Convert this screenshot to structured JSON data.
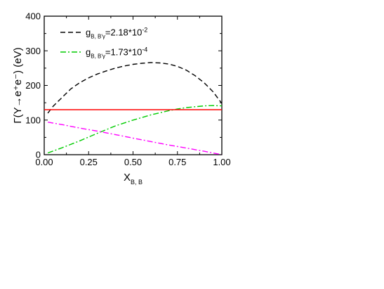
{
  "chart_data": {
    "type": "line",
    "xlabel": "X",
    "xlabel_sub": "B, B",
    "ylabel": "Γ(Υ→e⁺e⁻) (eV)",
    "xlim": [
      0.0,
      1.0
    ],
    "ylim": [
      0,
      400
    ],
    "xticks": [
      0.0,
      0.25,
      0.5,
      0.75,
      1.0
    ],
    "xtick_labels": [
      "0.00",
      "0.25",
      "0.50",
      "0.75",
      "1.00"
    ],
    "yticks": [
      0,
      100,
      200,
      300,
      400
    ],
    "ytick_labels": [
      "0",
      "100",
      "200",
      "300",
      "400"
    ],
    "grid": false,
    "legend_position": "top-left",
    "series": [
      {
        "name": "g_{B1B'1γ}=2.18*10^{-2}",
        "legend_main": "g",
        "legend_sub": "B, B'γ",
        "legend_value": "=2.18*10",
        "legend_exp": "-2",
        "color": "#000000",
        "style": "dash",
        "x": [
          0.02,
          0.05,
          0.1,
          0.15,
          0.2,
          0.25,
          0.3,
          0.35,
          0.4,
          0.45,
          0.5,
          0.55,
          0.6,
          0.65,
          0.7,
          0.75,
          0.8,
          0.85,
          0.9,
          0.95,
          1.0
        ],
        "y": [
          120,
          140,
          165,
          190,
          208,
          222,
          233,
          242,
          250,
          256,
          261,
          264,
          266,
          265,
          262,
          255,
          244,
          228,
          208,
          182,
          148
        ]
      },
      {
        "name": "g_{B1B'1γ}=1.73*10^{-4}",
        "legend_main": "g",
        "legend_sub": "B, B'γ",
        "legend_value": "=1.73*10",
        "legend_exp": "-4",
        "color": "#00cc00",
        "style": "dashdot",
        "x": [
          0.02,
          0.1,
          0.2,
          0.3,
          0.4,
          0.5,
          0.6,
          0.7,
          0.75,
          0.8,
          0.9,
          0.95,
          1.0
        ],
        "y": [
          5,
          20,
          40,
          62,
          83,
          100,
          115,
          127,
          132,
          136,
          141,
          142,
          141
        ]
      },
      {
        "color": "#ff0000",
        "style": "solid",
        "x": [
          0.0,
          1.0
        ],
        "y": [
          130,
          130
        ]
      },
      {
        "color": "#ff00ff",
        "style": "dashdot",
        "x": [
          0.02,
          0.1,
          0.2,
          0.3,
          0.4,
          0.5,
          0.6,
          0.7,
          0.8,
          0.9,
          1.0
        ],
        "y": [
          94,
          87,
          77,
          68,
          58,
          48,
          38,
          28,
          19,
          10,
          0
        ]
      }
    ]
  }
}
